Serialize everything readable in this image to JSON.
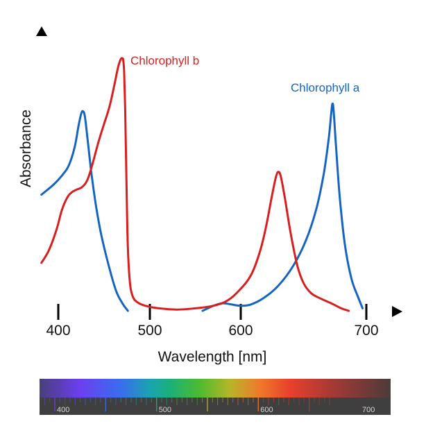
{
  "chart_data": {
    "type": "line",
    "title": "",
    "xlabel": "Wavelength [nm]",
    "ylabel": "Absorbance",
    "x_ticks": [
      400,
      500,
      600,
      700
    ],
    "x_tick_labels": [
      "400",
      "500",
      "600",
      "700"
    ],
    "xlim": [
      380,
      700
    ],
    "ylim": [
      0,
      1
    ],
    "y_ticks": [],
    "grid": false,
    "legend": "inline labels next to peaks",
    "series": [
      {
        "name": "Chlorophyll a",
        "color": "#1565c0",
        "segments": [
          {
            "x": [
              382,
              395,
              405,
              412,
              418,
              422,
              425,
              427,
              429,
              432,
              436,
              441,
              447,
              455,
              463,
              470,
              476
            ],
            "y": [
              0.46,
              0.5,
              0.54,
              0.58,
              0.65,
              0.73,
              0.78,
              0.79,
              0.77,
              0.68,
              0.55,
              0.42,
              0.3,
              0.18,
              0.08,
              0.03,
              0.0
            ]
          },
          {
            "x": [
              558,
              570,
              580,
              590,
              600,
              608,
              618,
              630,
              642,
              652,
              660,
              666,
              670,
              672,
              673,
              674,
              676,
              679,
              683,
              688,
              693,
              697
            ],
            "y": [
              0.0,
              0.02,
              0.03,
              0.025,
              0.02,
              0.025,
              0.05,
              0.1,
              0.18,
              0.28,
              0.4,
              0.54,
              0.68,
              0.78,
              0.82,
              0.79,
              0.64,
              0.44,
              0.26,
              0.13,
              0.06,
              0.01
            ]
          }
        ]
      },
      {
        "name": "Chlorophyll b",
        "color": "#d81e1e",
        "segments": [
          {
            "x": [
              382,
              390,
              398,
              404,
              410,
              415,
              420,
              426,
              432,
              438,
              444,
              450,
              456,
              461,
              465,
              468,
              470,
              471,
              472,
              473,
              474,
              475,
              476,
              478,
              481,
              486,
              495,
              510,
              530,
              550,
              570,
              585,
              598,
              608,
              615,
              620,
              625,
              628,
              630,
              632,
              635,
              640,
              645,
              650,
              656,
              663,
              672,
              680,
              686
            ],
            "y": [
              0.19,
              0.24,
              0.32,
              0.4,
              0.45,
              0.47,
              0.48,
              0.49,
              0.52,
              0.59,
              0.67,
              0.74,
              0.81,
              0.89,
              0.96,
              0.995,
              1.0,
              0.99,
              0.94,
              0.8,
              0.6,
              0.4,
              0.25,
              0.12,
              0.06,
              0.035,
              0.02,
              0.01,
              0.005,
              0.01,
              0.02,
              0.04,
              0.08,
              0.14,
              0.23,
              0.33,
              0.46,
              0.53,
              0.55,
              0.53,
              0.45,
              0.3,
              0.18,
              0.11,
              0.07,
              0.05,
              0.03,
              0.01,
              0.0
            ]
          }
        ]
      }
    ],
    "annotations": [
      {
        "text": "Chlorophyll b",
        "series": "Chlorophyll b",
        "near_peak_nm": 470
      },
      {
        "text": "Chlorophyll a",
        "series": "Chlorophyll a",
        "near_peak_nm": 673
      }
    ]
  },
  "axes": {
    "y_arrow": "up-arrow",
    "x_arrow": "right-arrow"
  },
  "spectrum_bar": {
    "labels": [
      "400",
      "500",
      "600",
      "700"
    ],
    "range_nm": [
      380,
      730
    ],
    "stops": [
      {
        "nm": 380,
        "color": "#4a3f7a"
      },
      {
        "nm": 420,
        "color": "#6b3ff0"
      },
      {
        "nm": 460,
        "color": "#3a6cf0"
      },
      {
        "nm": 490,
        "color": "#1aa3b0"
      },
      {
        "nm": 510,
        "color": "#1bb07a"
      },
      {
        "nm": 540,
        "color": "#4dbb2e"
      },
      {
        "nm": 570,
        "color": "#b8b52a"
      },
      {
        "nm": 600,
        "color": "#f0782a"
      },
      {
        "nm": 630,
        "color": "#e8402c"
      },
      {
        "nm": 670,
        "color": "#a83a35"
      },
      {
        "nm": 730,
        "color": "#4c3b3b"
      }
    ]
  }
}
